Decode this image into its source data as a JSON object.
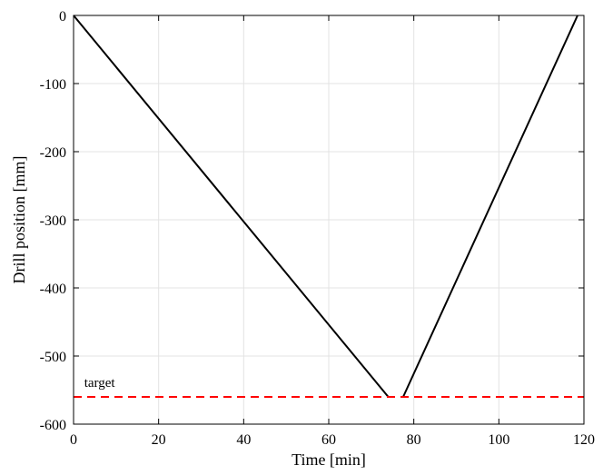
{
  "chart_data": {
    "type": "line",
    "title": "",
    "xlabel": "Time [min]",
    "ylabel": "Drill position [mm]",
    "xlim": [
      0,
      120
    ],
    "ylim": [
      -600,
      0
    ],
    "xticks": [
      0,
      20,
      40,
      60,
      80,
      100,
      120
    ],
    "yticks": [
      0,
      -100,
      -200,
      -300,
      -400,
      -500,
      -600
    ],
    "xtick_labels": [
      "0",
      "20",
      "40",
      "60",
      "80",
      "100",
      "120"
    ],
    "ytick_labels": [
      "0",
      "-100",
      "-200",
      "-300",
      "-400",
      "-500",
      "-600"
    ],
    "grid": true,
    "series": [
      {
        "color": "#000000",
        "style": "solid",
        "segments": [
          {
            "x": [
              0,
              74
            ],
            "y": [
              0,
              -560
            ]
          },
          {
            "x": [
              77.5,
              118.5
            ],
            "y": [
              -560,
              0
            ]
          }
        ]
      },
      {
        "color": "#ff0000",
        "style": "dashed",
        "segments": [
          {
            "x": [
              0,
              120
            ],
            "y": [
              -560,
              -560
            ]
          }
        ]
      }
    ],
    "annotations": [
      {
        "text": "target",
        "x": 2.5,
        "y": -545
      }
    ]
  }
}
